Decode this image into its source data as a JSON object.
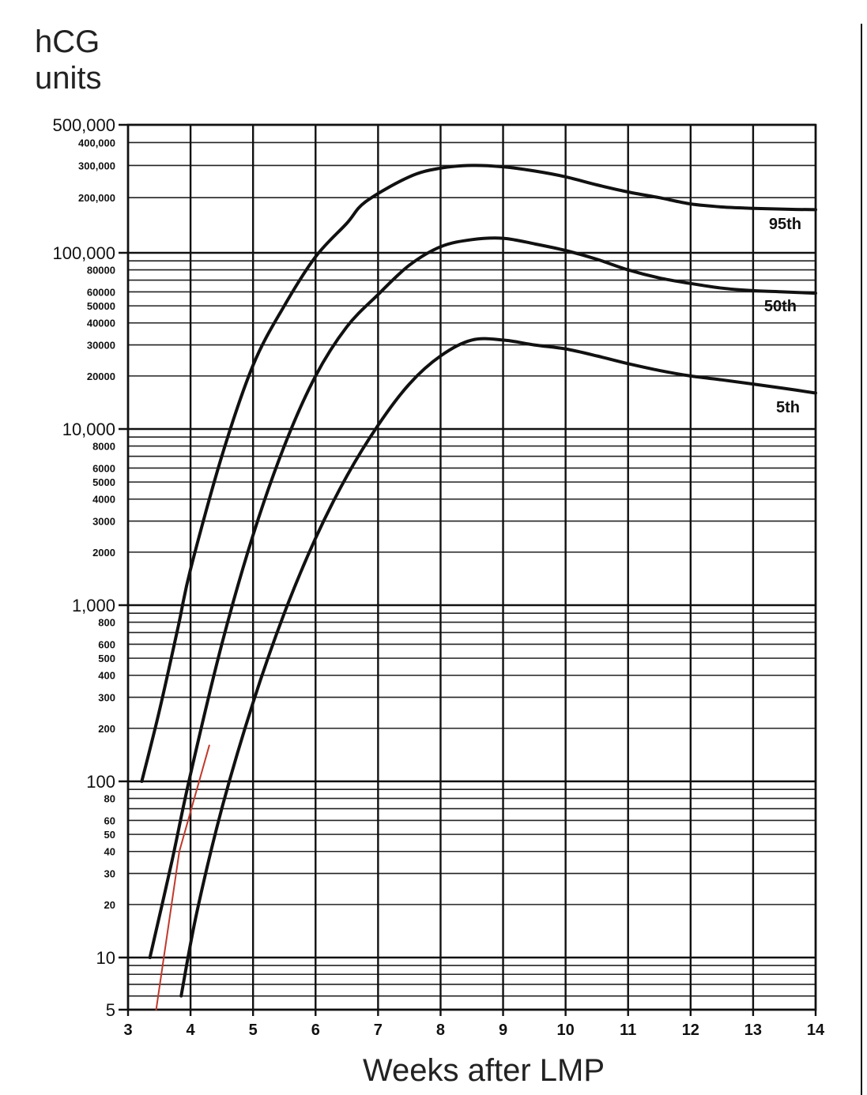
{
  "chart_data": {
    "type": "line",
    "ylabel": [
      "hCG",
      "units"
    ],
    "xlabel": "Weeks after LMP",
    "yscale": "log",
    "xlim": [
      3,
      14
    ],
    "ylim": [
      5,
      500000
    ],
    "grid": true,
    "x_ticks": [
      3,
      4,
      5,
      6,
      7,
      8,
      9,
      10,
      11,
      12,
      13,
      14
    ],
    "y_ticks_major": [
      {
        "value": 500000,
        "label": "500,000"
      },
      {
        "value": 100000,
        "label": "100,000"
      },
      {
        "value": 10000,
        "label": "10,000"
      },
      {
        "value": 1000,
        "label": "1,000"
      },
      {
        "value": 100,
        "label": "100"
      },
      {
        "value": 10,
        "label": "10"
      },
      {
        "value": 5,
        "label": "5"
      }
    ],
    "y_ticks_minor": [
      {
        "value": 400000,
        "label": "400,000"
      },
      {
        "value": 300000,
        "label": "300,000"
      },
      {
        "value": 200000,
        "label": "200,000"
      },
      {
        "value": 80000,
        "label": "80000"
      },
      {
        "value": 60000,
        "label": "60000"
      },
      {
        "value": 50000,
        "label": "50000"
      },
      {
        "value": 40000,
        "label": "40000"
      },
      {
        "value": 30000,
        "label": "30000"
      },
      {
        "value": 20000,
        "label": "20000"
      },
      {
        "value": 8000,
        "label": "8000"
      },
      {
        "value": 6000,
        "label": "6000"
      },
      {
        "value": 5000,
        "label": "5000"
      },
      {
        "value": 4000,
        "label": "4000"
      },
      {
        "value": 3000,
        "label": "3000"
      },
      {
        "value": 2000,
        "label": "2000"
      },
      {
        "value": 800,
        "label": "800"
      },
      {
        "value": 600,
        "label": "600"
      },
      {
        "value": 500,
        "label": "500"
      },
      {
        "value": 400,
        "label": "400"
      },
      {
        "value": 300,
        "label": "300"
      },
      {
        "value": 200,
        "label": "200"
      },
      {
        "value": 80,
        "label": "80"
      },
      {
        "value": 60,
        "label": "60"
      },
      {
        "value": 50,
        "label": "50"
      },
      {
        "value": 40,
        "label": "40"
      },
      {
        "value": 30,
        "label": "30"
      },
      {
        "value": 20,
        "label": "20"
      }
    ],
    "gridline_values": [
      500000,
      400000,
      300000,
      200000,
      100000,
      90000,
      80000,
      70000,
      60000,
      50000,
      40000,
      30000,
      20000,
      10000,
      9000,
      8000,
      7000,
      6000,
      5000,
      4000,
      3000,
      2000,
      1000,
      900,
      800,
      700,
      600,
      500,
      400,
      300,
      200,
      100,
      90,
      80,
      70,
      60,
      50,
      40,
      30,
      20,
      10,
      9,
      8,
      7,
      6,
      5
    ],
    "series": [
      {
        "name": "95th",
        "points": [
          [
            3.22,
            100
          ],
          [
            3.5,
            250
          ],
          [
            3.8,
            750
          ],
          [
            4.0,
            1600
          ],
          [
            4.5,
            7000
          ],
          [
            5.0,
            23000
          ],
          [
            5.5,
            50000
          ],
          [
            6.0,
            95000
          ],
          [
            6.5,
            145000
          ],
          [
            6.8,
            190000
          ],
          [
            7.5,
            260000
          ],
          [
            8.0,
            290000
          ],
          [
            8.5,
            300000
          ],
          [
            9.0,
            295000
          ],
          [
            9.5,
            280000
          ],
          [
            10.0,
            260000
          ],
          [
            10.5,
            235000
          ],
          [
            11.0,
            215000
          ],
          [
            11.5,
            200000
          ],
          [
            12.0,
            185000
          ],
          [
            12.5,
            178000
          ],
          [
            13.0,
            175000
          ],
          [
            13.5,
            173000
          ],
          [
            14.0,
            172000
          ]
        ]
      },
      {
        "name": "50th",
        "points": [
          [
            3.35,
            10
          ],
          [
            3.7,
            35
          ],
          [
            4.0,
            110
          ],
          [
            4.5,
            600
          ],
          [
            5.0,
            2500
          ],
          [
            5.5,
            8000
          ],
          [
            6.0,
            20000
          ],
          [
            6.5,
            38000
          ],
          [
            7.0,
            58000
          ],
          [
            7.5,
            85000
          ],
          [
            8.0,
            108000
          ],
          [
            8.5,
            118000
          ],
          [
            9.0,
            120000
          ],
          [
            9.5,
            112000
          ],
          [
            10.0,
            103000
          ],
          [
            10.5,
            92000
          ],
          [
            11.0,
            80000
          ],
          [
            11.5,
            72000
          ],
          [
            12.0,
            67000
          ],
          [
            12.5,
            63000
          ],
          [
            13.0,
            61000
          ],
          [
            13.5,
            60000
          ],
          [
            14.0,
            59000
          ]
        ]
      },
      {
        "name": "5th",
        "points": [
          [
            3.85,
            6
          ],
          [
            4.1,
            18
          ],
          [
            4.5,
            70
          ],
          [
            5.0,
            280
          ],
          [
            5.5,
            900
          ],
          [
            6.0,
            2400
          ],
          [
            6.5,
            5400
          ],
          [
            7.0,
            10500
          ],
          [
            7.5,
            18000
          ],
          [
            8.0,
            26000
          ],
          [
            8.5,
            32000
          ],
          [
            9.0,
            32000
          ],
          [
            9.5,
            30000
          ],
          [
            10.0,
            28500
          ],
          [
            10.5,
            26000
          ],
          [
            11.0,
            23500
          ],
          [
            11.5,
            21500
          ],
          [
            12.0,
            20000
          ],
          [
            12.5,
            19000
          ],
          [
            13.0,
            18000
          ],
          [
            13.5,
            17000
          ],
          [
            14.0,
            16000
          ]
        ]
      }
    ],
    "annotation_line": {
      "color": "#c0392b",
      "points": [
        [
          3.45,
          5
        ],
        [
          3.82,
          40
        ],
        [
          4.3,
          160
        ]
      ]
    }
  }
}
